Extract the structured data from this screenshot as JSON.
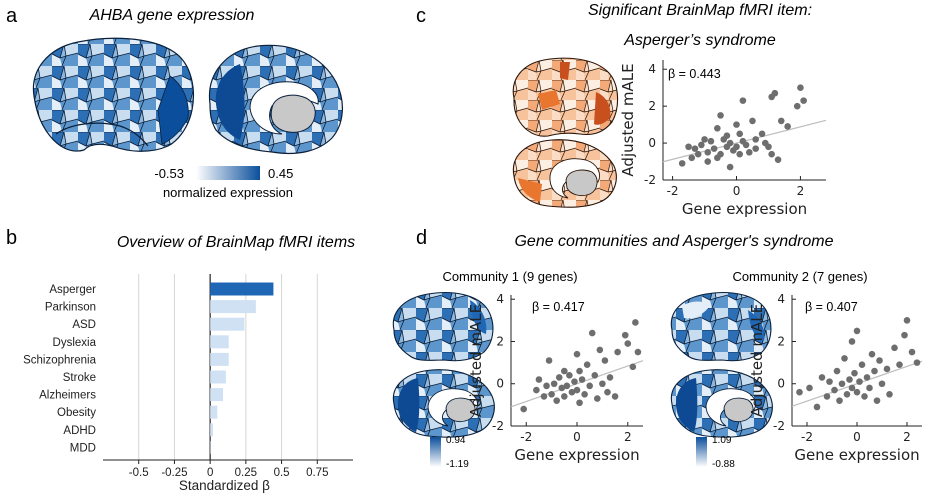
{
  "panels": {
    "a": {
      "letter": "a",
      "title": "AHBA gene expression",
      "colorbar_min": "-0.53",
      "colorbar_max": "0.45",
      "colorbar_label": "normalized expression"
    },
    "b": {
      "letter": "b",
      "title": "Overview of BrainMap fMRI items"
    },
    "c": {
      "letter": "c",
      "title_line1": "Significant BrainMap fMRI item:",
      "title_line2": "Asperger’s syndrome",
      "beta_text": "β = 0.443"
    },
    "d": {
      "letter": "d",
      "title": "Gene communities and Asperger's syndrome",
      "community1": {
        "title": "Community 1 (9 genes)",
        "beta_text": "β = 0.417",
        "colorbar_max": "0.94",
        "colorbar_min": "-1.19"
      },
      "community2": {
        "title": "Community 2 (7 genes)",
        "beta_text": "β = 0.407",
        "colorbar_max": "1.09",
        "colorbar_min": "-0.88"
      }
    }
  },
  "colors": {
    "blue_dark": "#0b4f9c",
    "blue_light": "#dce9f6",
    "orange_dark": "#c8501e",
    "orange_light": "#fbe3cf",
    "dot": "#6e6e6e",
    "fit_line": "#bdbdbd",
    "bar_highlight": "#1f67b4"
  },
  "chart_data": [
    {
      "id": "b",
      "type": "bar",
      "orientation": "horizontal",
      "categories": [
        "Asperger",
        "Parkinson",
        "ASD",
        "Dyslexia",
        "Schizophrenia",
        "Stroke",
        "Alzheimers",
        "Obesity",
        "ADHD",
        "MDD"
      ],
      "values": [
        0.443,
        0.32,
        0.24,
        0.13,
        0.13,
        0.11,
        0.09,
        0.05,
        0.02,
        0.0
      ],
      "highlight": "Asperger",
      "xlabel": "Standardized β",
      "xlim": [
        -0.75,
        1.0
      ],
      "xticks": [
        -0.5,
        -0.25,
        0,
        0.25,
        0.5,
        0.75
      ],
      "xtick_labels": [
        "-0.5",
        "-0.25",
        "0",
        "0.25",
        "0.5",
        "0.75"
      ],
      "grid": true
    },
    {
      "id": "c",
      "type": "scatter",
      "xlabel": "Gene expression",
      "ylabel": "Adjusted mALE",
      "xlim": [
        -2.3,
        2.8
      ],
      "ylim": [
        -2,
        4.5
      ],
      "xticks": [
        -2,
        0,
        2
      ],
      "yticks": [
        -2,
        0,
        2,
        4
      ],
      "fit": {
        "slope": 0.44,
        "intercept": 0.0
      },
      "points": [
        [
          -1.7,
          -1.1
        ],
        [
          -1.5,
          -0.2
        ],
        [
          -1.4,
          -0.8
        ],
        [
          -1.3,
          -0.3
        ],
        [
          -1.2,
          -0.6
        ],
        [
          -1.1,
          -0.1
        ],
        [
          -1.0,
          0.2
        ],
        [
          -0.9,
          -0.5
        ],
        [
          -0.9,
          -1.0
        ],
        [
          -0.8,
          0.1
        ],
        [
          -0.7,
          -0.3
        ],
        [
          -0.6,
          0.8
        ],
        [
          -0.6,
          -0.8
        ],
        [
          -0.5,
          1.5
        ],
        [
          -0.5,
          -0.6
        ],
        [
          -0.4,
          0.2
        ],
        [
          -0.3,
          -0.2
        ],
        [
          -0.3,
          0.4
        ],
        [
          -0.2,
          0.0
        ],
        [
          -0.2,
          -1.3
        ],
        [
          -0.1,
          -0.4
        ],
        [
          0.0,
          1.0
        ],
        [
          0.0,
          -0.2
        ],
        [
          0.1,
          0.5
        ],
        [
          0.1,
          -0.6
        ],
        [
          0.2,
          2.3
        ],
        [
          0.2,
          0.1
        ],
        [
          0.3,
          -0.1
        ],
        [
          0.4,
          -0.5
        ],
        [
          0.5,
          1.2
        ],
        [
          0.6,
          0.2
        ],
        [
          0.6,
          -0.3
        ],
        [
          0.8,
          0.5
        ],
        [
          0.9,
          0.0
        ],
        [
          1.0,
          -0.2
        ],
        [
          1.1,
          2.5
        ],
        [
          1.1,
          -0.6
        ],
        [
          1.2,
          2.7
        ],
        [
          1.3,
          -0.9
        ],
        [
          1.4,
          1.2
        ],
        [
          1.6,
          0.9
        ],
        [
          1.9,
          2.0
        ],
        [
          2.0,
          3.0
        ],
        [
          2.1,
          2.3
        ]
      ]
    },
    {
      "id": "d1",
      "type": "scatter",
      "xlabel": "Gene expression",
      "ylabel": "Adjusted mALE",
      "xlim": [
        -2.6,
        2.6
      ],
      "ylim": [
        -2,
        4.2
      ],
      "xticks": [
        -2,
        0,
        2
      ],
      "yticks": [
        -2,
        0,
        2,
        4
      ],
      "fit": {
        "slope": 0.42,
        "intercept": 0.0
      },
      "points": [
        [
          -2.1,
          -1.2
        ],
        [
          -1.6,
          -0.3
        ],
        [
          -1.5,
          0.2
        ],
        [
          -1.3,
          -0.6
        ],
        [
          -1.2,
          -0.1
        ],
        [
          -1.1,
          1.1
        ],
        [
          -1.0,
          -0.5
        ],
        [
          -0.9,
          0.0
        ],
        [
          -0.8,
          -0.8
        ],
        [
          -0.7,
          0.3
        ],
        [
          -0.6,
          -0.2
        ],
        [
          -0.5,
          0.6
        ],
        [
          -0.5,
          -0.6
        ],
        [
          -0.4,
          -0.1
        ],
        [
          -0.3,
          0.4
        ],
        [
          -0.2,
          -0.4
        ],
        [
          -0.1,
          0.1
        ],
        [
          0.0,
          1.4
        ],
        [
          0.0,
          -0.3
        ],
        [
          0.1,
          0.6
        ],
        [
          0.1,
          -0.9
        ],
        [
          0.2,
          0.2
        ],
        [
          0.3,
          -0.5
        ],
        [
          0.4,
          0.9
        ],
        [
          0.5,
          -0.1
        ],
        [
          0.6,
          2.4
        ],
        [
          0.7,
          0.4
        ],
        [
          0.8,
          -0.7
        ],
        [
          0.9,
          1.6
        ],
        [
          1.0,
          0.0
        ],
        [
          1.1,
          1.1
        ],
        [
          1.2,
          -0.4
        ],
        [
          1.3,
          0.3
        ],
        [
          1.5,
          -0.6
        ],
        [
          1.6,
          1.5
        ],
        [
          1.9,
          2.3
        ],
        [
          2.0,
          1.9
        ],
        [
          2.2,
          0.8
        ],
        [
          2.3,
          2.9
        ],
        [
          2.4,
          1.5
        ]
      ]
    },
    {
      "id": "d2",
      "type": "scatter",
      "xlabel": "Gene expression",
      "ylabel": "Adjusted mALE",
      "xlim": [
        -2.6,
        2.6
      ],
      "ylim": [
        -2,
        4.2
      ],
      "xticks": [
        -2,
        0,
        2
      ],
      "yticks": [
        -2,
        0,
        2,
        4
      ],
      "fit": {
        "slope": 0.41,
        "intercept": 0.0
      },
      "points": [
        [
          -2.3,
          -0.4
        ],
        [
          -1.9,
          -0.2
        ],
        [
          -1.6,
          -1.1
        ],
        [
          -1.4,
          0.3
        ],
        [
          -1.2,
          -0.6
        ],
        [
          -1.1,
          0.1
        ],
        [
          -0.9,
          -0.3
        ],
        [
          -0.8,
          0.6
        ],
        [
          -0.7,
          -0.8
        ],
        [
          -0.6,
          0.0
        ],
        [
          -0.5,
          1.2
        ],
        [
          -0.4,
          -0.5
        ],
        [
          -0.3,
          0.2
        ],
        [
          -0.2,
          2.0
        ],
        [
          -0.2,
          -0.2
        ],
        [
          -0.1,
          0.5
        ],
        [
          0.0,
          2.5
        ],
        [
          0.0,
          -0.4
        ],
        [
          0.1,
          0.1
        ],
        [
          0.2,
          0.9
        ],
        [
          0.3,
          -0.6
        ],
        [
          0.4,
          0.3
        ],
        [
          0.5,
          -0.2
        ],
        [
          0.6,
          1.4
        ],
        [
          0.7,
          0.6
        ],
        [
          0.8,
          -0.8
        ],
        [
          0.9,
          1.1
        ],
        [
          1.0,
          0.0
        ],
        [
          1.2,
          0.7
        ],
        [
          1.3,
          -0.5
        ],
        [
          1.5,
          1.7
        ],
        [
          1.7,
          0.9
        ],
        [
          1.9,
          2.3
        ],
        [
          2.0,
          3.0
        ],
        [
          2.2,
          1.5
        ],
        [
          2.4,
          1.0
        ]
      ]
    }
  ]
}
